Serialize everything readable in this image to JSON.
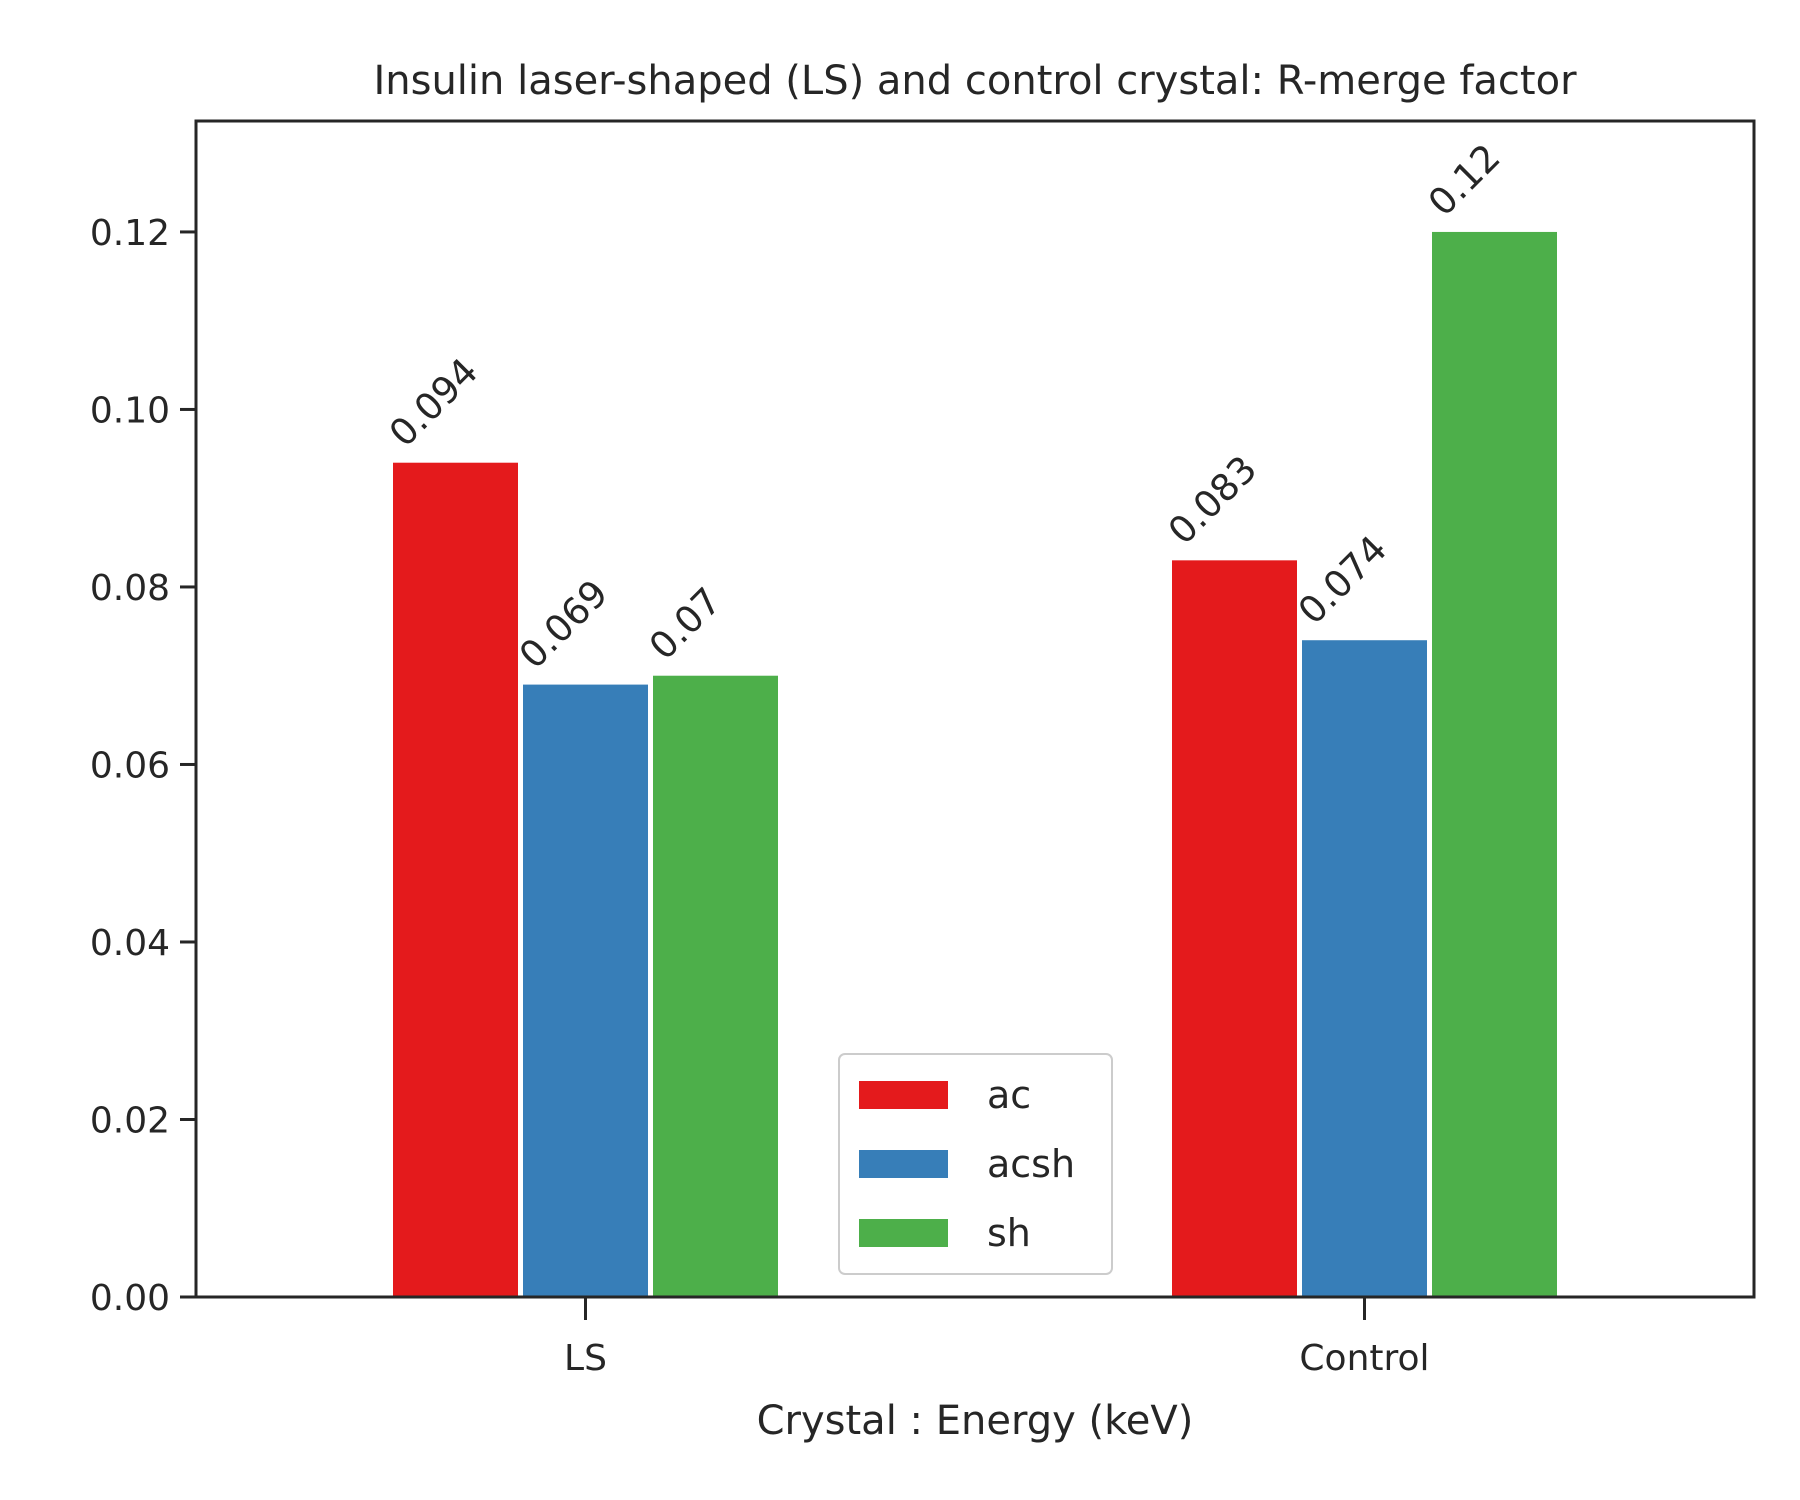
{
  "chart_data": {
    "type": "bar",
    "title": "Insulin laser-shaped (LS) and control crystal: R-merge factor",
    "xlabel": "Crystal : Energy (keV)",
    "ylabel": "",
    "categories": [
      "LS",
      "Control"
    ],
    "series": [
      {
        "name": "ac",
        "color": "#e41a1c",
        "values": [
          0.094,
          0.083
        ],
        "labels": [
          "0.094",
          "0.083"
        ]
      },
      {
        "name": "acsh",
        "color": "#377eb8",
        "values": [
          0.069,
          0.074
        ],
        "labels": [
          "0.069",
          "0.074"
        ]
      },
      {
        "name": "sh",
        "color": "#4daf4a",
        "values": [
          0.07,
          0.12
        ],
        "labels": [
          "0.07",
          "0.12"
        ]
      }
    ],
    "ylim": [
      0,
      0.1325
    ],
    "yticks": [
      0,
      0.02,
      0.04,
      0.06,
      0.08,
      0.1,
      0.12
    ],
    "ytick_labels": [
      "0.00",
      "0.02",
      "0.04",
      "0.06",
      "0.08",
      "0.10",
      "0.12"
    ],
    "grid": false,
    "legend_position": "bottom-center"
  }
}
